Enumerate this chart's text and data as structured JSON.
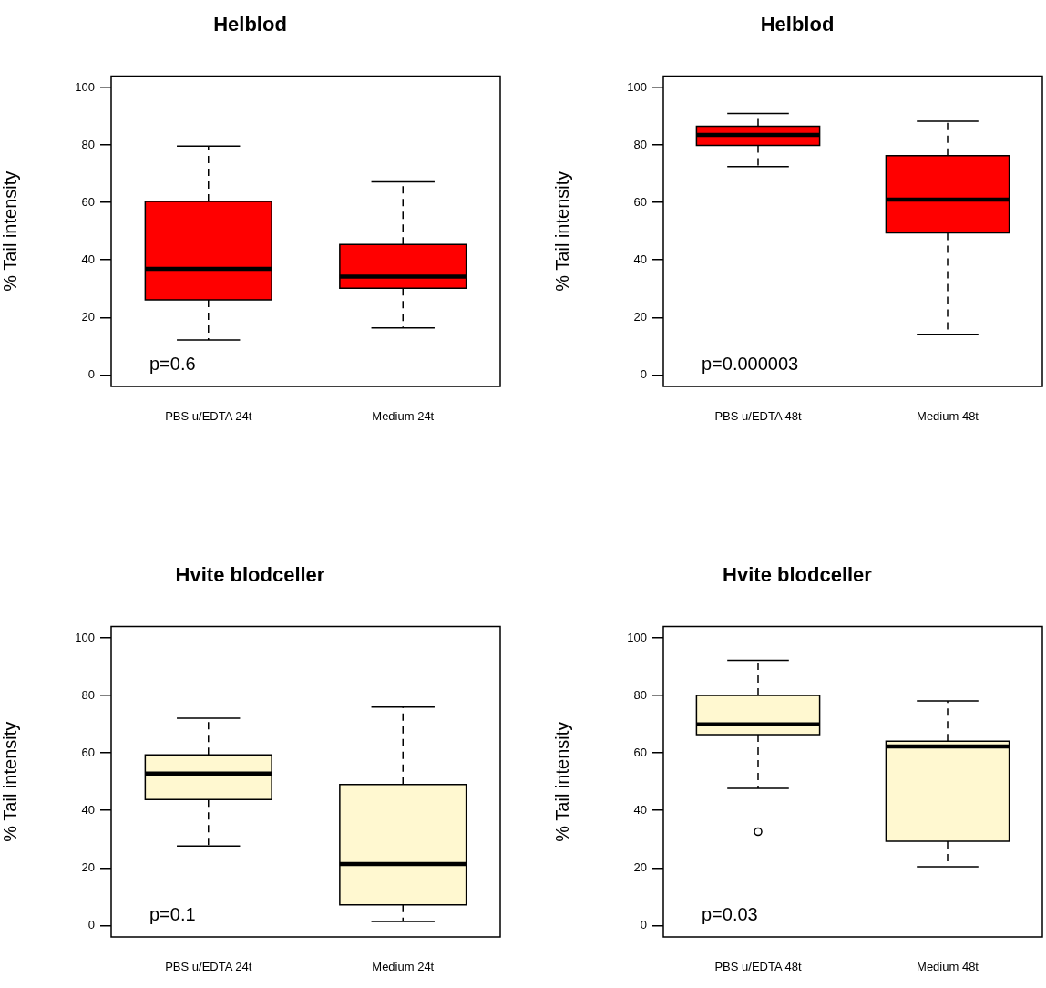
{
  "chart_data": [
    {
      "type": "box",
      "title": "Helblod",
      "ylabel": "% Tail intensity",
      "categories": [
        "PBS u/EDTA 24t",
        "Medium 24t"
      ],
      "ylim": [
        -4,
        104
      ],
      "yticks": [
        0,
        20,
        40,
        60,
        80,
        100
      ],
      "grid": false,
      "annotations": [
        "p=0.6"
      ],
      "series": [
        {
          "color": "#ff0000",
          "boxes": [
            {
              "low": 12.2,
              "q1": 26.1,
              "median": 36.9,
              "q3": 60.4,
              "high": 79.6
            },
            {
              "low": 16.4,
              "q1": 30.2,
              "median": 34.2,
              "q3": 45.4,
              "high": 67.2
            }
          ]
        }
      ]
    },
    {
      "type": "box",
      "title": "Helblod",
      "ylabel": "% Tail intensity",
      "categories": [
        "PBS u/EDTA 48t",
        "Medium 48t"
      ],
      "ylim": [
        -4,
        104
      ],
      "yticks": [
        0,
        20,
        40,
        60,
        80,
        100
      ],
      "grid": false,
      "annotations": [
        "p=0.000003"
      ],
      "series": [
        {
          "color": "#ff0000",
          "boxes": [
            {
              "low": 72.5,
              "q1": 79.9,
              "median": 83.5,
              "q3": 86.5,
              "high": 91.0
            },
            {
              "low": 14.0,
              "q1": 49.4,
              "median": 61.0,
              "q3": 76.3,
              "high": 88.3
            }
          ]
        }
      ]
    },
    {
      "type": "box",
      "title": "Hvite blodceller",
      "ylabel": "% Tail intensity",
      "categories": [
        "PBS u/EDTA 24t",
        "Medium 24t"
      ],
      "ylim": [
        -4,
        104
      ],
      "yticks": [
        0,
        20,
        40,
        60,
        80,
        100
      ],
      "grid": false,
      "annotations": [
        "p=0.1"
      ],
      "series": [
        {
          "color": "#fff8d0",
          "boxes": [
            {
              "low": 27.6,
              "q1": 43.8,
              "median": 52.8,
              "q3": 59.3,
              "high": 72.1
            },
            {
              "low": 1.4,
              "q1": 7.2,
              "median": 21.4,
              "q3": 49.0,
              "high": 76.0
            }
          ]
        }
      ]
    },
    {
      "type": "box",
      "title": "Hvite blodceller",
      "ylabel": "% Tail intensity",
      "categories": [
        "PBS u/EDTA 48t",
        "Medium 48t"
      ],
      "ylim": [
        -4,
        104
      ],
      "yticks": [
        0,
        20,
        40,
        60,
        80,
        100
      ],
      "grid": false,
      "annotations": [
        "p=0.03"
      ],
      "series": [
        {
          "color": "#fff8d0",
          "boxes": [
            {
              "low": 47.7,
              "q1": 66.4,
              "median": 70.0,
              "q3": 80.0,
              "high": 92.2,
              "outliers": [
                32.6
              ]
            },
            {
              "low": 20.4,
              "q1": 29.3,
              "median": 62.3,
              "q3": 64.1,
              "high": 78.1
            }
          ]
        }
      ]
    }
  ]
}
